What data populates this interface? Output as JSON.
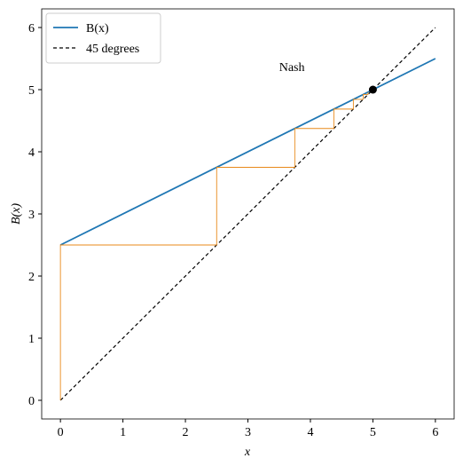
{
  "chart_data": {
    "type": "line",
    "xlabel": "x",
    "ylabel": "B(x)",
    "xlim": [
      -0.3,
      6.3
    ],
    "ylim": [
      -0.3,
      6.3
    ],
    "xticks": [
      0,
      1,
      2,
      3,
      4,
      5,
      6
    ],
    "yticks": [
      0,
      1,
      2,
      3,
      4,
      5,
      6
    ],
    "legend": "upper left",
    "series": [
      {
        "name": "B(x)",
        "color": "#1f77b4",
        "style": "solid",
        "x": [
          0,
          6
        ],
        "values": [
          2.5,
          5.5
        ]
      },
      {
        "name": "45 degrees",
        "color": "#000000",
        "style": "dashed",
        "x": [
          0,
          6
        ],
        "values": [
          0,
          6
        ]
      },
      {
        "color": "#e8891a",
        "style": "thin",
        "x": [
          0,
          0,
          2.5,
          2.5,
          3.75,
          3.75,
          4.375,
          4.375,
          4.6875,
          4.6875,
          4.84375,
          4.84375,
          4.921875,
          4.921875
        ],
        "values": [
          0,
          2.5,
          2.5,
          3.75,
          3.75,
          4.375,
          4.375,
          4.6875,
          4.6875,
          4.84375,
          4.84375,
          4.921875,
          4.921875,
          4.9609375
        ]
      }
    ],
    "nash_point": {
      "x": 5,
      "y": 5,
      "color": "#000000"
    },
    "annotation": {
      "text": "Nash",
      "x": 3.5,
      "y": 5.3
    }
  }
}
